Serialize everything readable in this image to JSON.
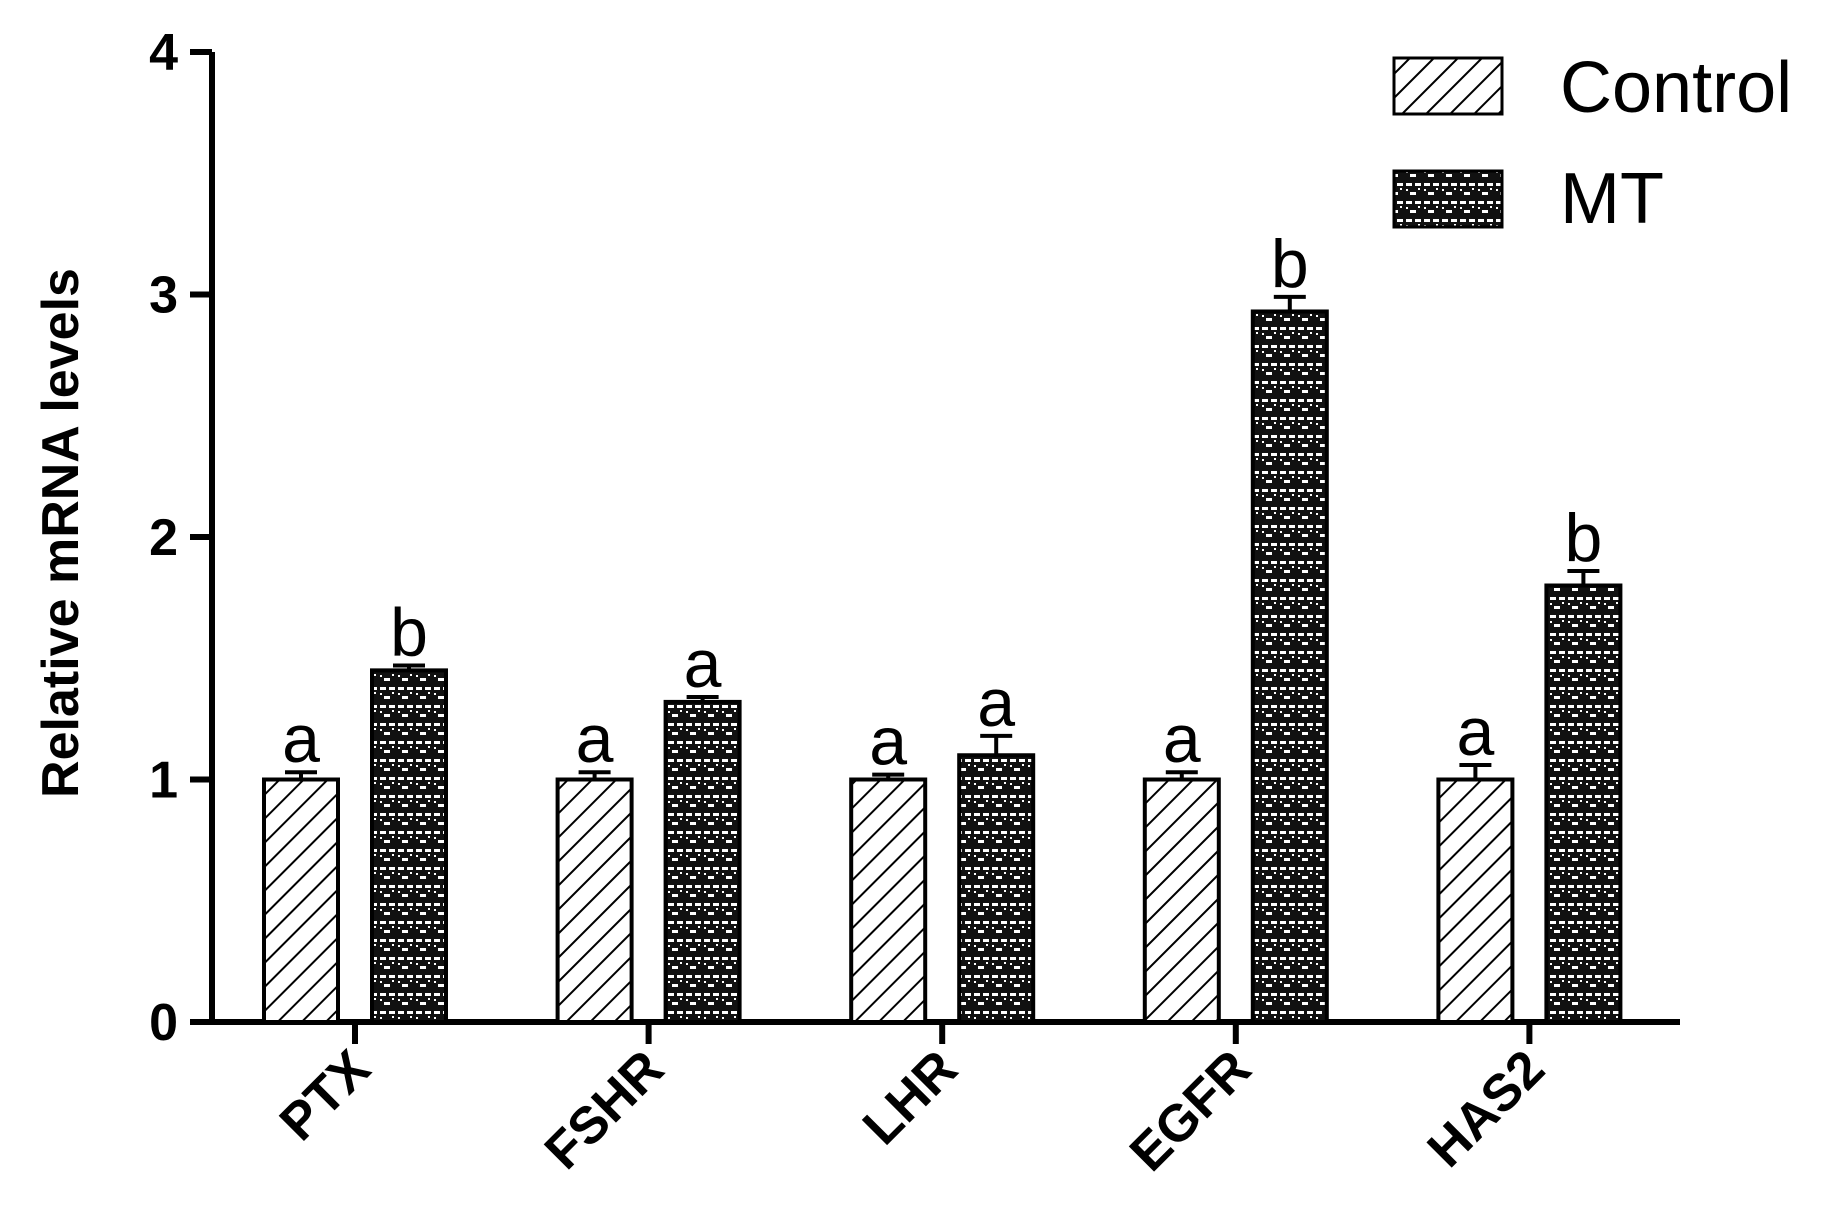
{
  "chart_data": {
    "type": "bar",
    "title": "",
    "xlabel": "",
    "ylabel": "Relative mRNA levels",
    "ylim": [
      0,
      4
    ],
    "yticks": [
      0,
      1,
      2,
      3,
      4
    ],
    "categories": [
      "PTX",
      "FSHR",
      "LHR",
      "EGFR",
      "HAS2"
    ],
    "series": [
      {
        "name": "Control",
        "pattern": "diagonal-hatch",
        "values": [
          1.0,
          1.0,
          1.0,
          1.0,
          1.0
        ],
        "errors": [
          0.03,
          0.03,
          0.02,
          0.03,
          0.06
        ],
        "labels": [
          "a",
          "a",
          "a",
          "a",
          "a"
        ]
      },
      {
        "name": "MT",
        "pattern": "brick-dots",
        "values": [
          1.45,
          1.32,
          1.1,
          2.93,
          1.8
        ],
        "errors": [
          0.02,
          0.02,
          0.08,
          0.06,
          0.06
        ],
        "labels": [
          "b",
          "a",
          "a",
          "b",
          "b"
        ]
      }
    ],
    "legend": "top-right",
    "grid": false,
    "colors": {
      "bar_stroke": "#000000",
      "background": "#ffffff"
    }
  }
}
